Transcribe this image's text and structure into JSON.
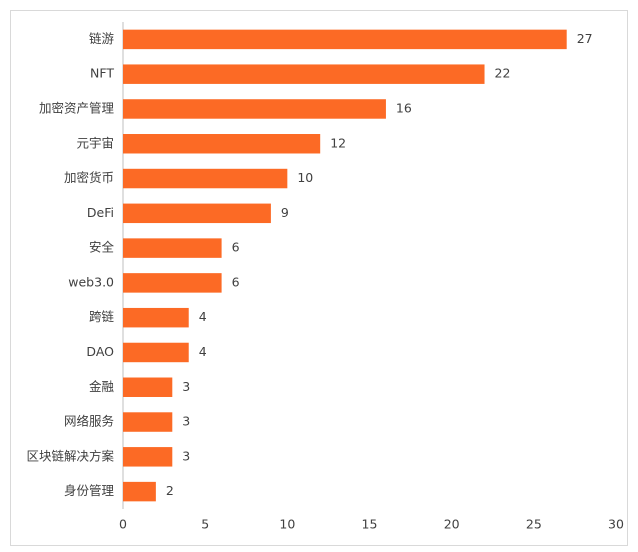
{
  "chart_data": {
    "type": "bar",
    "orientation": "horizontal",
    "categories": [
      "链游",
      "NFT",
      "加密资产管理",
      "元宇宙",
      "加密货币",
      "DeFi",
      "安全",
      "web3.0",
      "跨链",
      "DAO",
      "金融",
      "网络服务",
      "区块链解决方案",
      "身份管理"
    ],
    "values": [
      27,
      22,
      16,
      12,
      10,
      9,
      6,
      6,
      4,
      4,
      3,
      3,
      3,
      2
    ],
    "color": "#fc6a25",
    "xlim": [
      0,
      30
    ],
    "xticks": [
      0,
      5,
      10,
      15,
      20,
      25,
      30
    ],
    "grid": false
  }
}
